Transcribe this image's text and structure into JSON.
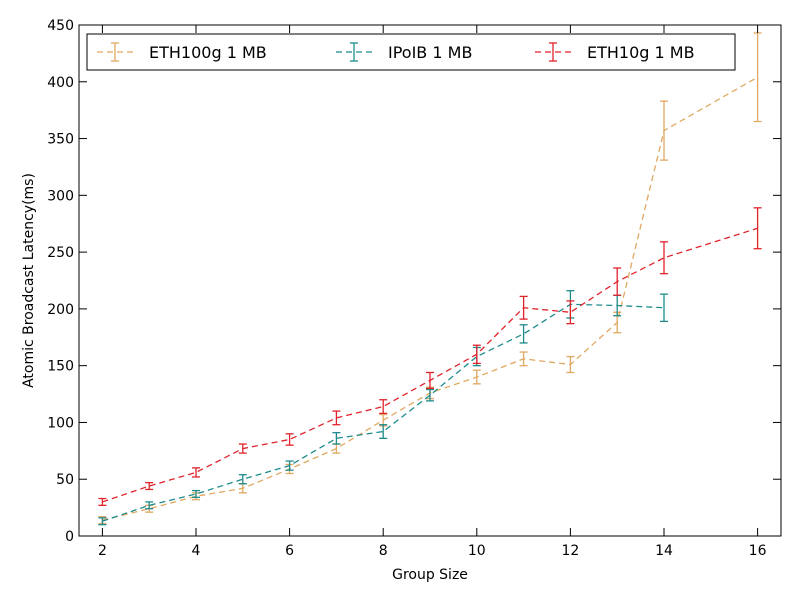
{
  "chart_data": {
    "type": "line",
    "xlabel": "Group Size",
    "ylabel": "Atomic Broadcast Latency(ms)",
    "xlim": [
      1.5,
      16.5
    ],
    "ylim": [
      0,
      450
    ],
    "xticks": [
      2,
      4,
      6,
      8,
      10,
      12,
      14,
      16
    ],
    "yticks": [
      0,
      50,
      100,
      150,
      200,
      250,
      300,
      350,
      400,
      450
    ],
    "grid": false,
    "legend": {
      "placement": "top",
      "entries": [
        "ETH100g 1 MB",
        "IPoIB 1 MB",
        "ETH10g 1 MB"
      ]
    },
    "series": [
      {
        "name": "ETH100g 1 MB",
        "color": "#e0a860",
        "linestyle": "dashed",
        "errorbars": true,
        "points": [
          {
            "x": 2,
            "y": 14,
            "err": 3
          },
          {
            "x": 3,
            "y": 24,
            "err": 3
          },
          {
            "x": 4,
            "y": 35,
            "err": 3
          },
          {
            "x": 5,
            "y": 42,
            "err": 4
          },
          {
            "x": 6,
            "y": 59,
            "err": 4
          },
          {
            "x": 7,
            "y": 77,
            "err": 4
          },
          {
            "x": 8,
            "y": 102,
            "err": 5
          },
          {
            "x": 9,
            "y": 126,
            "err": 5
          },
          {
            "x": 10,
            "y": 140,
            "err": 6
          },
          {
            "x": 11,
            "y": 156,
            "err": 6
          },
          {
            "x": 12,
            "y": 151,
            "err": 7
          },
          {
            "x": 13,
            "y": 188,
            "err": 9
          },
          {
            "x": 14,
            "y": 357,
            "err": 26
          },
          {
            "x": 16,
            "y": 404,
            "err": 39
          }
        ]
      },
      {
        "name": "IPoIB 1 MB",
        "color": "#1e8b8b",
        "linestyle": "dashed",
        "errorbars": true,
        "points": [
          {
            "x": 2,
            "y": 13,
            "err": 3
          },
          {
            "x": 3,
            "y": 27,
            "err": 3
          },
          {
            "x": 4,
            "y": 37,
            "err": 3
          },
          {
            "x": 5,
            "y": 50,
            "err": 4
          },
          {
            "x": 6,
            "y": 62,
            "err": 4
          },
          {
            "x": 7,
            "y": 86,
            "err": 5
          },
          {
            "x": 8,
            "y": 92,
            "err": 6
          },
          {
            "x": 9,
            "y": 124,
            "err": 5
          },
          {
            "x": 10,
            "y": 158,
            "err": 8
          },
          {
            "x": 11,
            "y": 178,
            "err": 8
          },
          {
            "x": 12,
            "y": 204,
            "err": 12
          },
          {
            "x": 13,
            "y": 203,
            "err": 9
          },
          {
            "x": 14,
            "y": 201,
            "err": 12
          }
        ]
      },
      {
        "name": "ETH10g 1 MB",
        "color": "#e0222b",
        "linestyle": "dashed",
        "errorbars": true,
        "points": [
          {
            "x": 2,
            "y": 30,
            "err": 3
          },
          {
            "x": 3,
            "y": 44,
            "err": 3
          },
          {
            "x": 4,
            "y": 56,
            "err": 4
          },
          {
            "x": 5,
            "y": 77,
            "err": 4
          },
          {
            "x": 6,
            "y": 85,
            "err": 5
          },
          {
            "x": 7,
            "y": 104,
            "err": 6
          },
          {
            "x": 8,
            "y": 114,
            "err": 6
          },
          {
            "x": 9,
            "y": 137,
            "err": 7
          },
          {
            "x": 10,
            "y": 160,
            "err": 8
          },
          {
            "x": 11,
            "y": 201,
            "err": 10
          },
          {
            "x": 12,
            "y": 197,
            "err": 10
          },
          {
            "x": 13,
            "y": 224,
            "err": 12
          },
          {
            "x": 14,
            "y": 245,
            "err": 14
          },
          {
            "x": 16,
            "y": 271,
            "err": 18
          }
        ]
      }
    ]
  }
}
